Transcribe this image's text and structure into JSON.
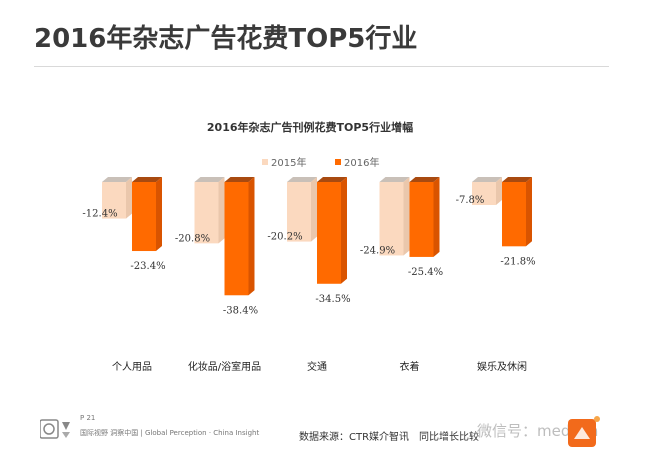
{
  "page": {
    "title": "2016年杂志广告花费TOP5行业",
    "page_number": "P 21",
    "brand_line": "国际视野 洞察中国 | Global Perception · China Insight",
    "source_note": "数据来源：CTR媒介智讯　同比增长比较",
    "watermark": "微信号：mediam"
  },
  "colors": {
    "series_2015": "#fbd9bf",
    "series_2015_top": "#c9c0b8",
    "series_2016": "#ff6a00",
    "series_2016_top": "#a84a10",
    "series_2016_side": "#d95400"
  },
  "chart_data": {
    "type": "bar",
    "title": "2016年杂志广告刊例花费TOP5行业增幅",
    "categories": [
      "个人用品",
      "化妆品/浴室用品",
      "交通",
      "衣着",
      "娱乐及休闲"
    ],
    "series": [
      {
        "name": "2015年",
        "values": [
          -12.4,
          -20.8,
          -20.2,
          -24.9,
          -7.8
        ],
        "labels": [
          "-12.4%",
          "-20.8%",
          "-20.2%",
          "-24.9%",
          "-7.8%"
        ]
      },
      {
        "name": "2016年",
        "values": [
          -23.4,
          -38.4,
          -34.5,
          -25.4,
          -21.8
        ],
        "labels": [
          "-23.4%",
          "-38.4%",
          "-34.5%",
          "-25.4%",
          "-21.8%"
        ]
      }
    ],
    "ylim": [
      -40,
      0
    ],
    "grid": false,
    "legend": "top",
    "style": "3d-column"
  }
}
